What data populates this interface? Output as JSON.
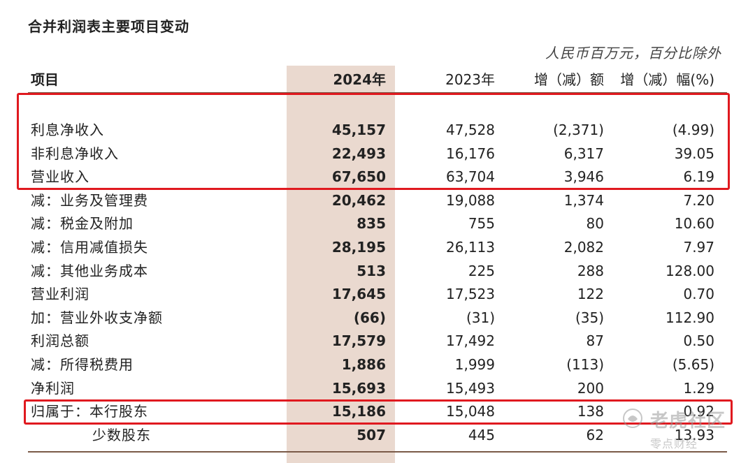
{
  "title": "合并利润表主要项目变动",
  "unit_note": "人民币百万元，百分比除外",
  "columns": {
    "item": "项目",
    "y2024": "2024年",
    "y2023": "2023年",
    "change": "增（减）额",
    "pct": "增（减）幅(%)"
  },
  "rows": [
    {
      "label": "利息净收入",
      "y2024": "45,157",
      "y2023": "47,528",
      "change": "(2,371)",
      "pct": "(4.99)"
    },
    {
      "label": "非利息净收入",
      "y2024": "22,493",
      "y2023": "16,176",
      "change": "6,317",
      "pct": "39.05"
    },
    {
      "label": "营业收入",
      "y2024": "67,650",
      "y2023": "63,704",
      "change": "3,946",
      "pct": "6.19"
    },
    {
      "label": "减：业务及管理费",
      "y2024": "20,462",
      "y2023": "19,088",
      "change": "1,374",
      "pct": "7.20"
    },
    {
      "label": "减：税金及附加",
      "y2024": "835",
      "y2023": "755",
      "change": "80",
      "pct": "10.60"
    },
    {
      "label": "减：信用减值损失",
      "y2024": "28,195",
      "y2023": "26,113",
      "change": "2,082",
      "pct": "7.97"
    },
    {
      "label": "减：其他业务成本",
      "y2024": "513",
      "y2023": "225",
      "change": "288",
      "pct": "128.00"
    },
    {
      "label": "营业利润",
      "y2024": "17,645",
      "y2023": "17,523",
      "change": "122",
      "pct": "0.70"
    },
    {
      "label": "加：营业外收支净额",
      "y2024": "(66)",
      "y2023": "(31)",
      "change": "(35)",
      "pct": "112.90"
    },
    {
      "label": "利润总额",
      "y2024": "17,579",
      "y2023": "17,492",
      "change": "87",
      "pct": "0.50"
    },
    {
      "label": "减：所得税费用",
      "y2024": "1,886",
      "y2023": "1,999",
      "change": "(113)",
      "pct": "(5.65)"
    },
    {
      "label": "净利润",
      "y2024": "15,693",
      "y2023": "15,493",
      "change": "200",
      "pct": "1.29"
    },
    {
      "label": "归属于：本行股东",
      "y2024": "15,186",
      "y2023": "15,048",
      "change": "138",
      "pct": "0.92"
    },
    {
      "label": "少数股东",
      "y2024": "507",
      "y2023": "445",
      "change": "62",
      "pct": "13.93"
    }
  ],
  "watermark": {
    "line1": "老虎社区",
    "line2": "零点财经"
  },
  "colors": {
    "highlight_column": "#ead9cf",
    "annotation_box": "#e0191f",
    "rule": "#7a5a48"
  }
}
